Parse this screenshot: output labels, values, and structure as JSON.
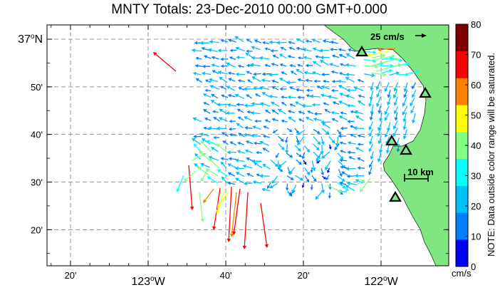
{
  "title": "MNTY Totals: 23-Dec-2010 00:00 GMT+0.000",
  "map": {
    "lat_labels": [
      {
        "lat": 37.0,
        "text": "37",
        "sup": "o",
        "suffix": "N"
      },
      {
        "lat": 36.8333,
        "text": "50'"
      },
      {
        "lat": 36.6667,
        "text": "40'"
      },
      {
        "lat": 36.5,
        "text": "30'"
      },
      {
        "lat": 36.3333,
        "text": "20'"
      }
    ],
    "lon_labels": [
      {
        "lon": -123.3333,
        "text": "20'"
      },
      {
        "lon": -123.0,
        "text": "123",
        "sup": "o",
        "suffix": "W"
      },
      {
        "lon": -122.6667,
        "text": "40'"
      },
      {
        "lon": -122.3333,
        "text": "20'"
      },
      {
        "lon": -122.0,
        "text": "122",
        "sup": "o",
        "suffix": "W"
      }
    ],
    "scale_vector_label": "25 cm/s",
    "scale_bar_label": "10 km",
    "land_color": "#80e680",
    "sites": [
      "site-1",
      "site-2",
      "site-3",
      "site-4",
      "site-5"
    ]
  },
  "colorbar": {
    "min": 0,
    "max": 80,
    "ticks": [
      "0",
      "10",
      "20",
      "30",
      "40",
      "50",
      "60",
      "70",
      "80"
    ],
    "colors": [
      "#0000ff",
      "#0080ff",
      "#00c0ff",
      "#00ffff",
      "#80ff80",
      "#ffff00",
      "#ff8000",
      "#ff0000",
      "#800000"
    ],
    "unit": "cm/s",
    "note": "NOTE: Data outside color range will be saturated."
  }
}
